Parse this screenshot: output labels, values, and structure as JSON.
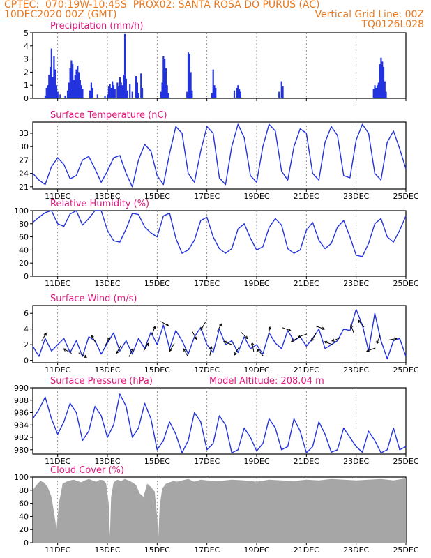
{
  "header": {
    "left_line1": "CPTEC:  070:19W-10:45S  PROX02: SANTA ROSA DO PURUS (AC)",
    "left_line2": "10DEC2020 00Z (GMT)",
    "right_line2": "Vertical Grid Line: 00Z",
    "right_line3": "TQ0126L028"
  },
  "colors": {
    "header": "#e8781e",
    "title": "#e0177d",
    "series": "#2233dd",
    "bars": "#2233dd",
    "cloud": "#a6a6a6",
    "arrows": "#000000"
  },
  "chart_data": [
    {
      "id": "precip",
      "type": "bar",
      "title": "Precipitation (mm/h)",
      "ylim": [
        0,
        5
      ],
      "yticks": [
        "0",
        "1",
        "2",
        "3",
        "4",
        "5"
      ],
      "xticks": [
        "11DEC",
        "13DEC",
        "15DEC",
        "17DEC",
        "19DEC",
        "21DEC",
        "23DEC",
        "25DEC"
      ],
      "xticks_shown": false,
      "x_days": [
        0,
        15
      ],
      "values": [
        [
          0.5,
          0.2
        ],
        [
          0.55,
          0.8
        ],
        [
          0.6,
          1.0
        ],
        [
          0.65,
          1.8
        ],
        [
          0.7,
          2.4
        ],
        [
          0.75,
          3.8
        ],
        [
          0.8,
          1.6
        ],
        [
          0.85,
          3.2
        ],
        [
          0.9,
          2.2
        ],
        [
          0.95,
          1.0
        ],
        [
          1.0,
          0.5
        ],
        [
          1.1,
          0.3
        ],
        [
          1.3,
          0.2
        ],
        [
          1.4,
          0.6
        ],
        [
          1.45,
          1.2
        ],
        [
          1.5,
          2.3
        ],
        [
          1.55,
          2.9
        ],
        [
          1.6,
          2.6
        ],
        [
          1.65,
          1.4
        ],
        [
          1.7,
          1.8
        ],
        [
          1.75,
          2.2
        ],
        [
          1.8,
          2.5
        ],
        [
          1.85,
          2.0
        ],
        [
          1.9,
          1.4
        ],
        [
          1.95,
          1.0
        ],
        [
          2.0,
          0.7
        ],
        [
          2.3,
          0.6
        ],
        [
          2.35,
          1.2
        ],
        [
          2.4,
          0.8
        ],
        [
          2.6,
          0.3
        ],
        [
          2.9,
          0.2
        ],
        [
          3.0,
          0.3
        ],
        [
          3.05,
          0.9
        ],
        [
          3.1,
          1.1
        ],
        [
          3.15,
          0.8
        ],
        [
          3.2,
          1.3
        ],
        [
          3.25,
          1.0
        ],
        [
          3.3,
          0.7
        ],
        [
          3.4,
          1.2
        ],
        [
          3.45,
          0.9
        ],
        [
          3.5,
          1.6
        ],
        [
          3.55,
          1.2
        ],
        [
          3.6,
          1.0
        ],
        [
          3.65,
          1.8
        ],
        [
          3.7,
          4.9
        ],
        [
          3.75,
          1.5
        ],
        [
          3.8,
          0.6
        ],
        [
          3.9,
          1.1
        ],
        [
          4.0,
          0.5
        ],
        [
          4.15,
          1.7
        ],
        [
          4.2,
          1.2
        ],
        [
          4.25,
          0.4
        ],
        [
          4.35,
          1.9
        ],
        [
          4.4,
          0.8
        ],
        [
          5.15,
          0.5
        ],
        [
          5.2,
          1.2
        ],
        [
          5.25,
          3.2
        ],
        [
          5.3,
          3.0
        ],
        [
          5.35,
          2.3
        ],
        [
          5.4,
          1.0
        ],
        [
          5.45,
          0.4
        ],
        [
          6.2,
          0.5
        ],
        [
          6.25,
          3.5
        ],
        [
          6.3,
          3.4
        ],
        [
          6.35,
          2.0
        ],
        [
          6.4,
          0.6
        ],
        [
          7.2,
          0.4
        ],
        [
          7.25,
          2.2
        ],
        [
          7.3,
          1.0
        ],
        [
          7.35,
          0.8
        ],
        [
          8.1,
          0.6
        ],
        [
          8.2,
          0.8
        ],
        [
          8.25,
          1.0
        ],
        [
          8.3,
          0.7
        ],
        [
          8.35,
          0.5
        ],
        [
          9.9,
          0.5
        ],
        [
          10.0,
          1.3
        ],
        [
          10.05,
          0.9
        ],
        [
          13.7,
          0.7
        ],
        [
          13.75,
          1.0
        ],
        [
          13.8,
          0.8
        ],
        [
          13.85,
          1.0
        ],
        [
          13.9,
          1.2
        ],
        [
          13.95,
          2.6
        ],
        [
          14.0,
          3.1
        ],
        [
          14.05,
          2.8
        ],
        [
          14.1,
          2.4
        ],
        [
          14.15,
          1.3
        ],
        [
          14.2,
          0.5
        ]
      ]
    },
    {
      "id": "temp",
      "type": "line",
      "title": "Surface Temperature (nC)",
      "ylim": [
        20.5,
        35.5
      ],
      "yticks": [
        "21",
        "24",
        "27",
        "30",
        "33"
      ],
      "xticks": [
        "11DEC",
        "13DEC",
        "15DEC",
        "17DEC",
        "19DEC",
        "21DEC",
        "23DEC",
        "25DEC"
      ],
      "x": [
        0,
        0.25,
        0.5,
        0.75,
        1.0,
        1.25,
        1.5,
        1.75,
        2.0,
        2.25,
        2.5,
        2.75,
        3.0,
        3.25,
        3.5,
        3.75,
        4.0,
        4.25,
        4.5,
        4.75,
        5.0,
        5.25,
        5.5,
        5.75,
        6.0,
        6.25,
        6.5,
        6.75,
        7.0,
        7.25,
        7.5,
        7.75,
        8.0,
        8.25,
        8.5,
        8.75,
        9.0,
        9.25,
        9.5,
        9.75,
        10.0,
        10.25,
        10.5,
        10.75,
        11.0,
        11.25,
        11.5,
        11.75,
        12.0,
        12.25,
        12.5,
        12.75,
        13.0,
        13.25,
        13.5,
        13.75,
        14.0,
        14.25,
        14.5,
        14.75,
        15.0
      ],
      "values": [
        24.0,
        22.5,
        21.5,
        25.5,
        27.5,
        26.0,
        22.8,
        23.5,
        27.0,
        27.8,
        25.0,
        22.0,
        24.5,
        27.5,
        28.0,
        24.0,
        21.0,
        27.0,
        30.5,
        29.0,
        23.5,
        21.5,
        28.5,
        34.5,
        33.0,
        24.0,
        22.0,
        29.0,
        34.5,
        33.0,
        23.0,
        21.5,
        30.0,
        35.0,
        32.0,
        23.5,
        22.0,
        30.0,
        35.0,
        33.5,
        24.5,
        22.5,
        30.0,
        34.0,
        33.0,
        24.0,
        22.5,
        31.0,
        34.5,
        32.5,
        23.5,
        23.0,
        31.5,
        35.0,
        33.0,
        24.0,
        22.5,
        31.0,
        33.5,
        29.5,
        25.0
      ]
    },
    {
      "id": "rh",
      "type": "line",
      "title": "Relative Humidity (%)",
      "ylim": [
        0,
        100
      ],
      "yticks": [
        "0",
        "20",
        "40",
        "60",
        "80",
        "100"
      ],
      "xticks": [
        "11DEC",
        "13DEC",
        "15DEC",
        "17DEC",
        "19DEC",
        "21DEC",
        "23DEC",
        "25DEC"
      ],
      "x": [
        0,
        0.25,
        0.5,
        0.75,
        1.0,
        1.25,
        1.5,
        1.75,
        2.0,
        2.25,
        2.5,
        2.75,
        3.0,
        3.25,
        3.5,
        3.75,
        4.0,
        4.25,
        4.5,
        4.75,
        5.0,
        5.25,
        5.5,
        5.75,
        6.0,
        6.25,
        6.5,
        6.75,
        7.0,
        7.25,
        7.5,
        7.75,
        8.0,
        8.25,
        8.5,
        8.75,
        9.0,
        9.25,
        9.5,
        9.75,
        10.0,
        10.25,
        10.5,
        10.75,
        11.0,
        11.25,
        11.5,
        11.75,
        12.0,
        12.25,
        12.5,
        12.75,
        13.0,
        13.25,
        13.5,
        13.75,
        14.0,
        14.25,
        14.5,
        14.75,
        15.0
      ],
      "values": [
        82,
        90,
        97,
        100,
        80,
        76,
        95,
        100,
        78,
        88,
        100,
        100,
        70,
        54,
        52,
        72,
        96,
        94,
        75,
        66,
        60,
        92,
        96,
        58,
        35,
        40,
        55,
        85,
        90,
        60,
        42,
        35,
        42,
        72,
        80,
        58,
        40,
        45,
        74,
        88,
        78,
        42,
        35,
        40,
        70,
        82,
        55,
        42,
        50,
        75,
        85,
        60,
        32,
        30,
        50,
        80,
        88,
        60,
        52,
        70,
        92
      ]
    },
    {
      "id": "wind",
      "type": "line",
      "title": "Surface Wind (m/s)",
      "ylim": [
        -0.3,
        7
      ],
      "yticks": [
        "0",
        "2",
        "4",
        "6"
      ],
      "xticks": [
        "11DEC",
        "13DEC",
        "15DEC",
        "17DEC",
        "19DEC",
        "21DEC",
        "23DEC",
        "25DEC"
      ],
      "x": [
        0,
        0.25,
        0.5,
        0.75,
        1.0,
        1.25,
        1.5,
        1.75,
        2.0,
        2.25,
        2.5,
        2.75,
        3.0,
        3.25,
        3.5,
        3.75,
        4.0,
        4.25,
        4.5,
        4.75,
        5.0,
        5.25,
        5.5,
        5.75,
        6.0,
        6.25,
        6.5,
        6.75,
        7.0,
        7.25,
        7.5,
        7.75,
        8.0,
        8.25,
        8.5,
        8.75,
        9.0,
        9.25,
        9.5,
        9.75,
        10.0,
        10.25,
        10.5,
        10.75,
        11.0,
        11.25,
        11.5,
        11.75,
        12.0,
        12.25,
        12.5,
        12.75,
        13.0,
        13.25,
        13.5,
        13.75,
        14.0,
        14.25,
        14.5,
        14.75,
        15.0
      ],
      "values": [
        1.8,
        0.5,
        2.8,
        1.2,
        2.0,
        2.8,
        1.0,
        2.5,
        0.5,
        3.0,
        2.5,
        0.8,
        2.2,
        3.5,
        1.2,
        2.5,
        0.8,
        2.8,
        1.5,
        3.6,
        2.0,
        4.5,
        1.5,
        3.8,
        2.5,
        0.8,
        3.0,
        4.2,
        2.0,
        1.0,
        4.0,
        2.0,
        2.5,
        1.0,
        3.0,
        1.5,
        2.0,
        0.8,
        3.5,
        2.2,
        1.5,
        3.8,
        2.5,
        3.0,
        1.8,
        2.8,
        4.0,
        1.5,
        2.0,
        2.5,
        4.0,
        3.8,
        6.5,
        4.5,
        1.2,
        6.0,
        2.5,
        0.2,
        2.5,
        2.8,
        0.5
      ],
      "arrows_x": [
        0.45,
        1.4,
        2.0,
        2.45,
        3.0,
        3.45,
        3.95,
        4.55,
        4.85,
        5.3,
        5.6,
        6.15,
        6.5,
        6.85,
        7.15,
        7.5,
        7.85,
        8.2,
        8.5,
        8.85,
        9.15,
        9.5,
        10.2,
        10.55,
        10.85,
        11.3,
        11.55,
        11.9,
        12.2,
        12.85,
        13.2,
        13.6,
        13.9,
        14.45
      ],
      "arrows_dir_deg": [
        60,
        150,
        -30,
        120,
        60,
        240,
        65,
        60,
        70,
        -30,
        240,
        120,
        -60,
        240,
        80,
        60,
        160,
        240,
        -45,
        100,
        130,
        80,
        -20,
        210,
        200,
        240,
        -20,
        160,
        200,
        110,
        130,
        200,
        250,
        10
      ]
    },
    {
      "id": "pres",
      "type": "line",
      "title": "Surface Pressure (hPa)",
      "annotation": "Model Altitude: 208.04 m",
      "ylim": [
        979.3,
        990
      ],
      "yticks": [
        "980",
        "982",
        "984",
        "986",
        "988",
        "990"
      ],
      "xticks": [
        "11DEC",
        "13DEC",
        "15DEC",
        "17DEC",
        "19DEC",
        "21DEC",
        "23DEC",
        "25DEC"
      ],
      "x": [
        0,
        0.25,
        0.5,
        0.75,
        1.0,
        1.25,
        1.5,
        1.75,
        2.0,
        2.25,
        2.5,
        2.75,
        3.0,
        3.25,
        3.5,
        3.75,
        4.0,
        4.25,
        4.5,
        4.75,
        5.0,
        5.25,
        5.5,
        5.75,
        6.0,
        6.25,
        6.5,
        6.75,
        7.0,
        7.25,
        7.5,
        7.75,
        8.0,
        8.25,
        8.5,
        8.75,
        9.0,
        9.25,
        9.5,
        9.75,
        10.0,
        10.25,
        10.5,
        10.75,
        11.0,
        11.25,
        11.5,
        11.75,
        12.0,
        12.25,
        12.5,
        12.75,
        13.0,
        13.25,
        13.5,
        13.75,
        14.0,
        14.25,
        14.5,
        14.75,
        15.0
      ],
      "values": [
        985.0,
        986.5,
        988.5,
        985.0,
        982.5,
        984.5,
        987.5,
        986.0,
        981.5,
        983.0,
        987.0,
        985.5,
        982.0,
        984.0,
        989.0,
        987.0,
        982.0,
        983.5,
        987.5,
        985.0,
        980.0,
        981.5,
        984.5,
        982.5,
        979.5,
        981.5,
        986.0,
        984.5,
        980.0,
        981.0,
        985.5,
        984.0,
        979.5,
        980.0,
        983.5,
        982.0,
        979.8,
        981.0,
        985.0,
        983.5,
        980.0,
        980.5,
        985.0,
        983.0,
        979.5,
        980.5,
        984.5,
        982.5,
        979.6,
        980.0,
        983.5,
        982.0,
        980.5,
        979.6,
        983.0,
        981.5,
        979.5,
        980.0,
        983.5,
        980.0,
        980.5
      ]
    },
    {
      "id": "cloud",
      "type": "area",
      "title": "Cloud Cover (%)",
      "ylim": [
        0,
        100
      ],
      "yticks": [
        "0",
        "20",
        "40",
        "60",
        "80",
        "100"
      ],
      "xticks": [
        "11DEC",
        "13DEC",
        "15DEC",
        "17DEC",
        "19DEC",
        "21DEC",
        "23DEC",
        "25DEC"
      ],
      "x": [
        0,
        0.15,
        0.3,
        0.45,
        0.6,
        0.75,
        0.9,
        0.95,
        1.05,
        1.2,
        1.35,
        1.5,
        1.65,
        1.8,
        1.95,
        2.1,
        2.25,
        2.4,
        2.55,
        2.7,
        2.85,
        2.95,
        3.05,
        3.1,
        3.15,
        3.25,
        3.4,
        3.55,
        3.7,
        3.85,
        4.0,
        4.15,
        4.3,
        4.45,
        4.6,
        4.75,
        4.9,
        5.0,
        5.05,
        5.1,
        5.2,
        5.35,
        5.5,
        5.65,
        5.8,
        6.0,
        6.25,
        6.5,
        6.75,
        7.0,
        7.5,
        8.0,
        8.5,
        9.0,
        9.5,
        10.0,
        10.5,
        11.0,
        11.5,
        12.0,
        12.5,
        13.0,
        13.5,
        14.0,
        14.5,
        15.0
      ],
      "values": [
        80,
        88,
        94,
        92,
        85,
        70,
        35,
        20,
        60,
        90,
        93,
        95,
        96,
        94,
        92,
        95,
        97,
        95,
        93,
        96,
        95,
        90,
        60,
        10,
        70,
        92,
        96,
        94,
        97,
        95,
        92,
        88,
        75,
        70,
        90,
        85,
        78,
        40,
        10,
        55,
        82,
        90,
        92,
        94,
        93,
        95,
        97,
        93,
        96,
        95,
        94,
        96,
        95,
        93,
        96,
        95,
        94,
        96,
        95,
        97,
        96,
        95,
        96,
        97,
        95,
        98
      ]
    }
  ]
}
